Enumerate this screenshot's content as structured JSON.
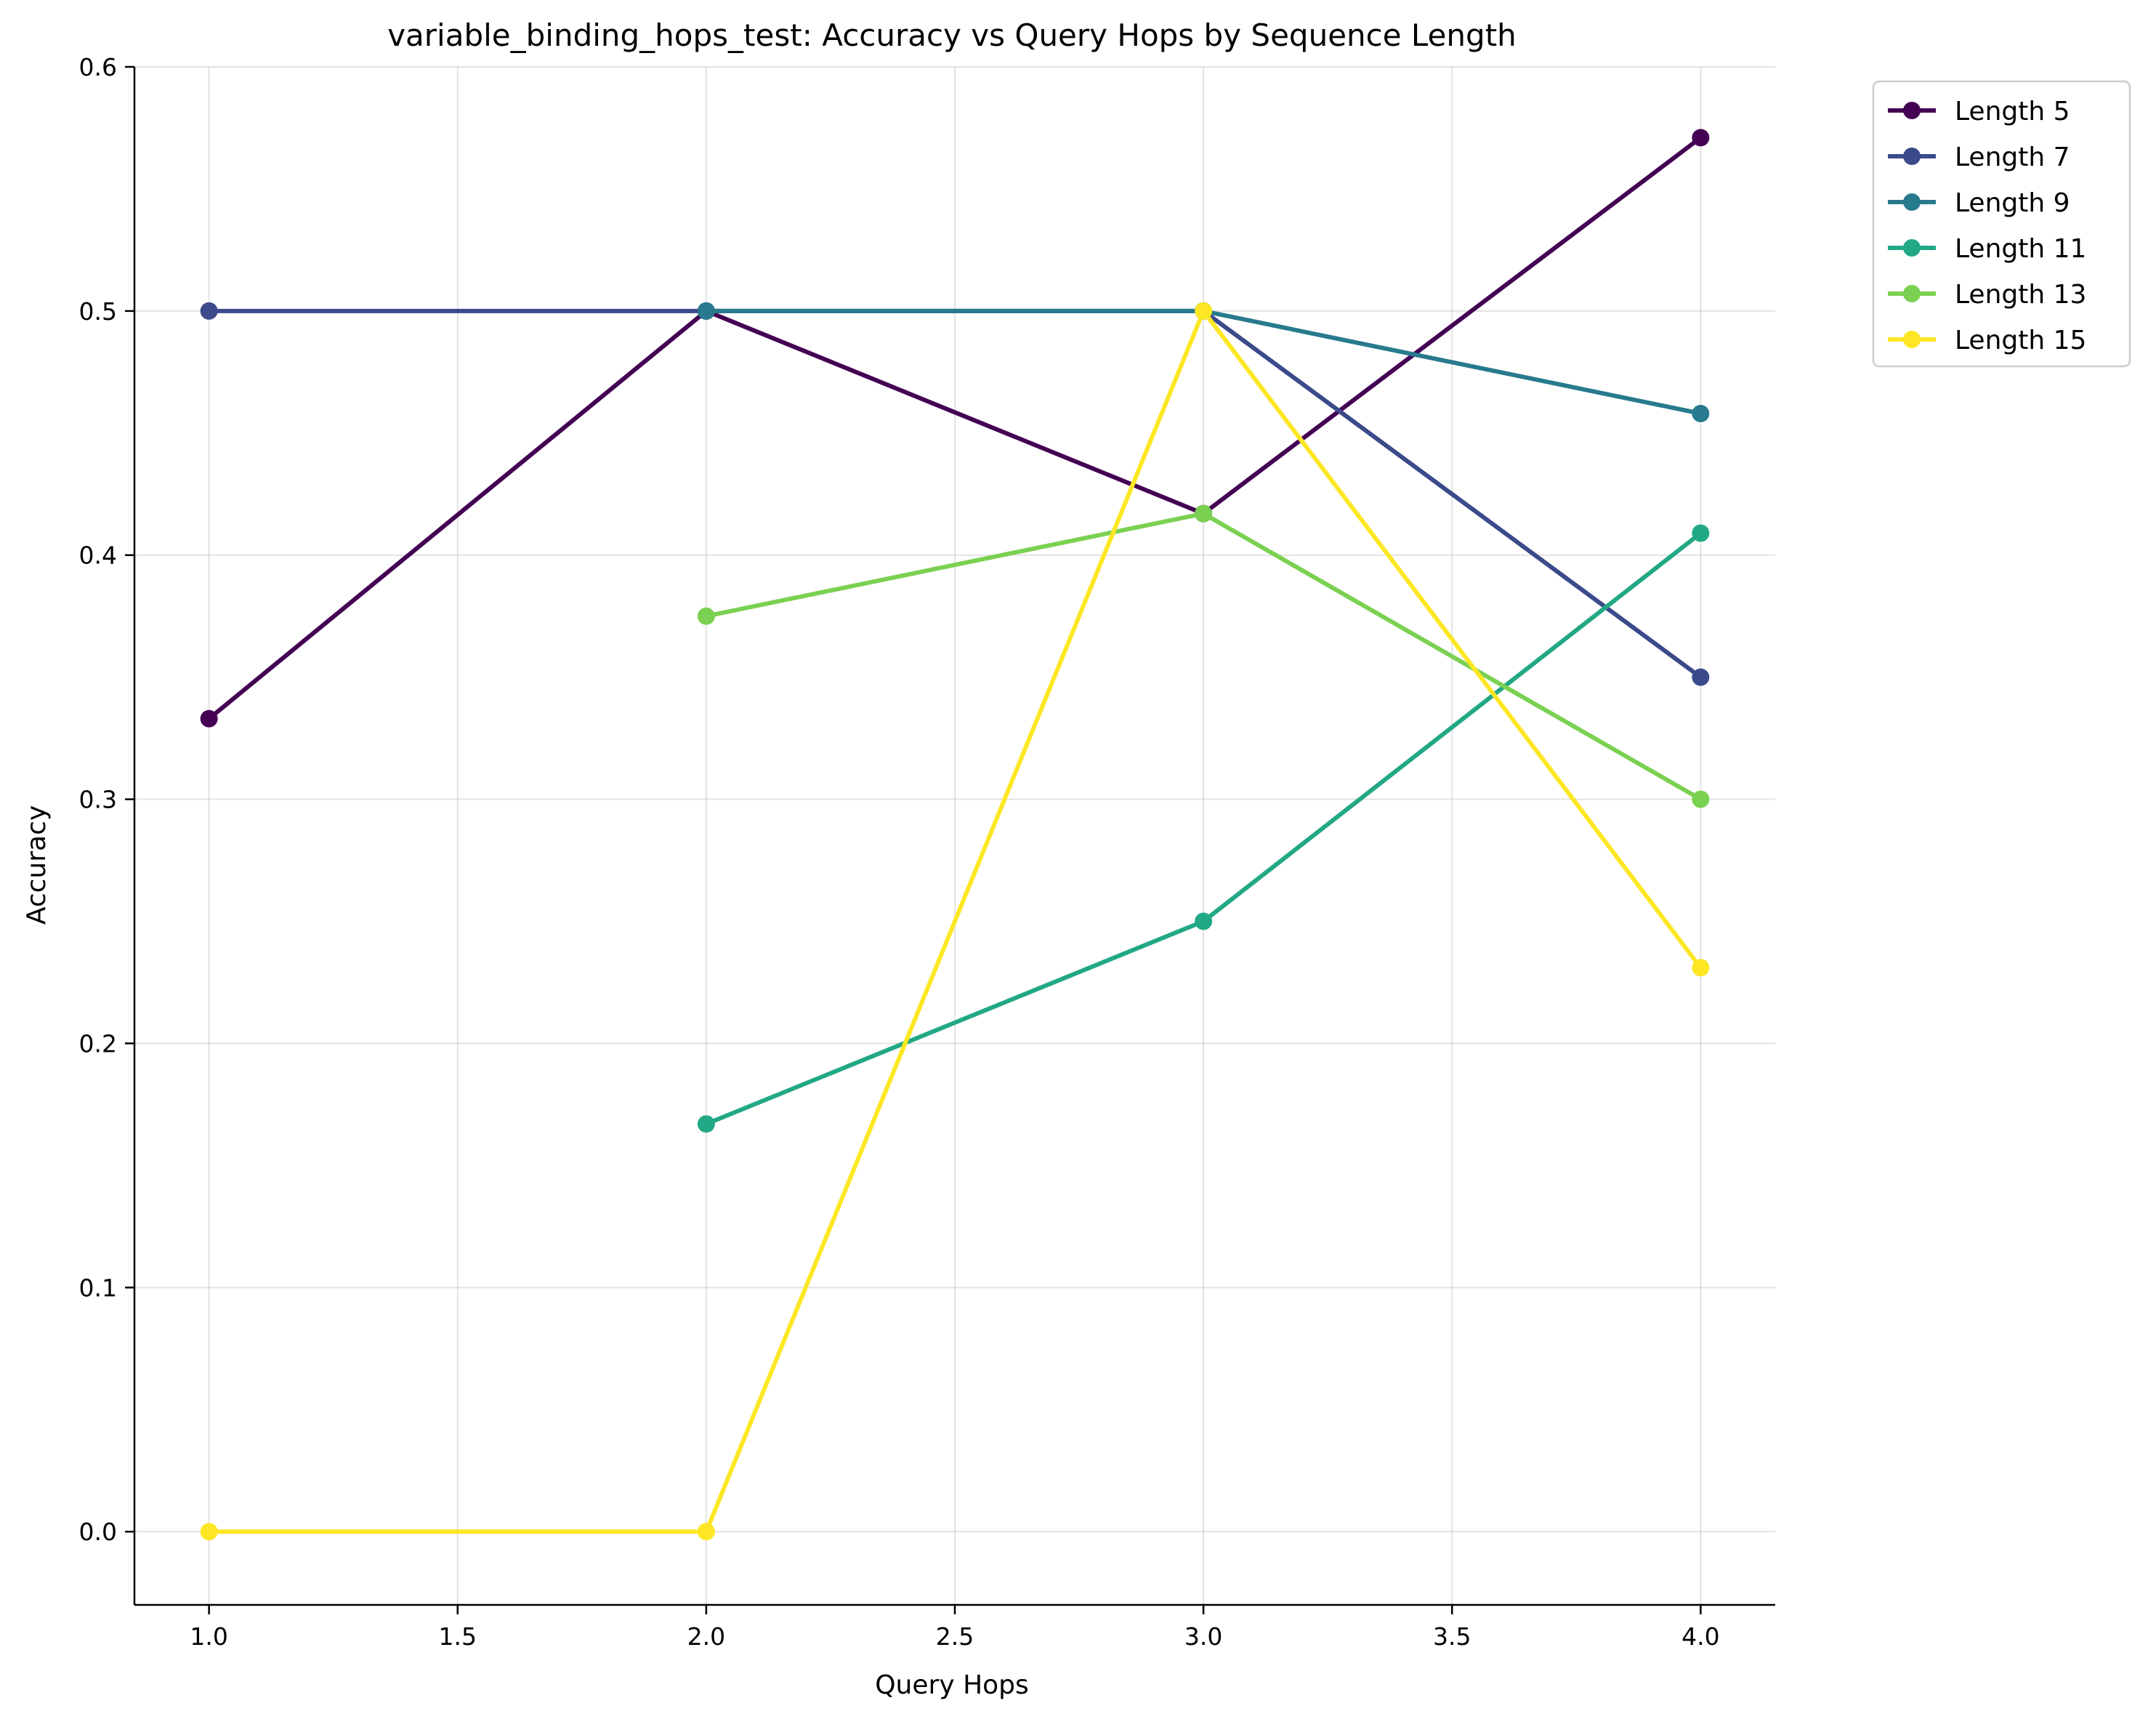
{
  "chart_data": {
    "type": "line",
    "title": "variable_binding_hops_test: Accuracy vs Query Hops by Sequence Length",
    "xlabel": "Query Hops",
    "ylabel": "Accuracy",
    "xlim": [
      0.85,
      4.15
    ],
    "ylim": [
      -0.03,
      0.6
    ],
    "xticks": [
      1.0,
      1.5,
      2.0,
      2.5,
      3.0,
      3.5,
      4.0
    ],
    "xtick_labels": [
      "1.0",
      "1.5",
      "2.0",
      "2.5",
      "3.0",
      "3.5",
      "4.0"
    ],
    "yticks": [
      0.0,
      0.1,
      0.2,
      0.3,
      0.4,
      0.5,
      0.6
    ],
    "ytick_labels": [
      "0.0",
      "0.1",
      "0.2",
      "0.3",
      "0.4",
      "0.5",
      "0.6"
    ],
    "grid": true,
    "legend_position": "outside-top-right",
    "series": [
      {
        "name": "Length 5",
        "color": "#440154",
        "points": [
          [
            1,
            0.333
          ],
          [
            2,
            0.5
          ],
          [
            3,
            0.417
          ],
          [
            4,
            0.571
          ]
        ]
      },
      {
        "name": "Length 7",
        "color": "#3b4a8a",
        "points": [
          [
            1,
            0.5
          ],
          [
            2,
            0.5
          ],
          [
            3,
            0.5
          ],
          [
            4,
            0.35
          ]
        ]
      },
      {
        "name": "Length 9",
        "color": "#287a8e",
        "points": [
          [
            2,
            0.5
          ],
          [
            3,
            0.5
          ],
          [
            4,
            0.458
          ]
        ]
      },
      {
        "name": "Length 11",
        "color": "#22a884",
        "points": [
          [
            2,
            0.167
          ],
          [
            3,
            0.25
          ],
          [
            4,
            0.409
          ]
        ]
      },
      {
        "name": "Length 13",
        "color": "#7ad151",
        "points": [
          [
            2,
            0.375
          ],
          [
            3,
            0.417
          ],
          [
            4,
            0.3
          ]
        ]
      },
      {
        "name": "Length 15",
        "color": "#fde725",
        "points": [
          [
            1,
            0.0
          ],
          [
            2,
            0.0
          ],
          [
            3,
            0.5
          ],
          [
            4,
            0.231
          ]
        ]
      }
    ]
  }
}
